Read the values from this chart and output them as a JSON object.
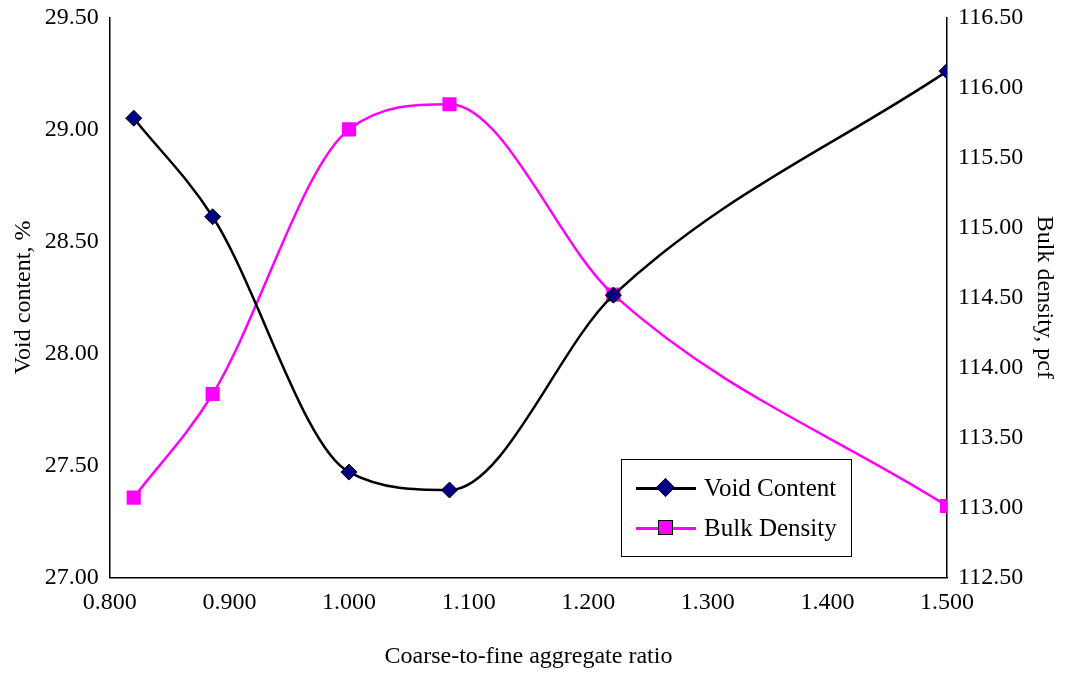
{
  "chart_data": {
    "type": "line",
    "xlabel": "Coarse-to-fine aggregate ratio",
    "ylabel": "Void content, %",
    "y2label": "Bulk density, pcf",
    "x": [
      0.82,
      0.886,
      1.0,
      1.084,
      1.221,
      1.5
    ],
    "series": [
      {
        "name": "Void Content",
        "color": "#000080",
        "marker": "diamond",
        "values": [
          29.05,
          28.61,
          27.47,
          27.39,
          28.26,
          29.26
        ]
      },
      {
        "name": "Bulk Density",
        "color": "#ff00ff",
        "marker": "square",
        "axis": "y2",
        "values": [
          113.07,
          113.81,
          115.7,
          115.88,
          114.52,
          113.01
        ]
      }
    ],
    "xlim": [
      0.8,
      1.5
    ],
    "xticks": [
      {
        "value": 0.8,
        "label": "0.800"
      },
      {
        "value": 0.9,
        "label": "0.900"
      },
      {
        "value": 1.0,
        "label": "1.000"
      },
      {
        "value": 1.1,
        "label": "1.100"
      },
      {
        "value": 1.2,
        "label": "1.200"
      },
      {
        "value": 1.3,
        "label": "1.300"
      },
      {
        "value": 1.4,
        "label": "1.400"
      },
      {
        "value": 1.5,
        "label": "1.500"
      }
    ],
    "ylim": [
      27,
      29.5
    ],
    "yticks": [
      {
        "value": 27,
        "label": "27.00"
      },
      {
        "value": 27.5,
        "label": "27.50"
      },
      {
        "value": 28,
        "label": "28.00"
      },
      {
        "value": 28.5,
        "label": "28.50"
      },
      {
        "value": 29,
        "label": "29.00"
      },
      {
        "value": 29.5,
        "label": "29.50"
      }
    ],
    "y2lim": [
      112.5,
      116.5
    ],
    "y2ticks": [
      {
        "value": 112.5,
        "label": "112.50"
      },
      {
        "value": 113,
        "label": "113.00"
      },
      {
        "value": 113.5,
        "label": "113.50"
      },
      {
        "value": 114,
        "label": "114.00"
      },
      {
        "value": 114.5,
        "label": "114.50"
      },
      {
        "value": 115,
        "label": "115.00"
      },
      {
        "value": 115.5,
        "label": "115.50"
      },
      {
        "value": 116,
        "label": "116.00"
      },
      {
        "value": 116.5,
        "label": "116.50"
      }
    ],
    "grid": false,
    "legend": "bottom right"
  }
}
